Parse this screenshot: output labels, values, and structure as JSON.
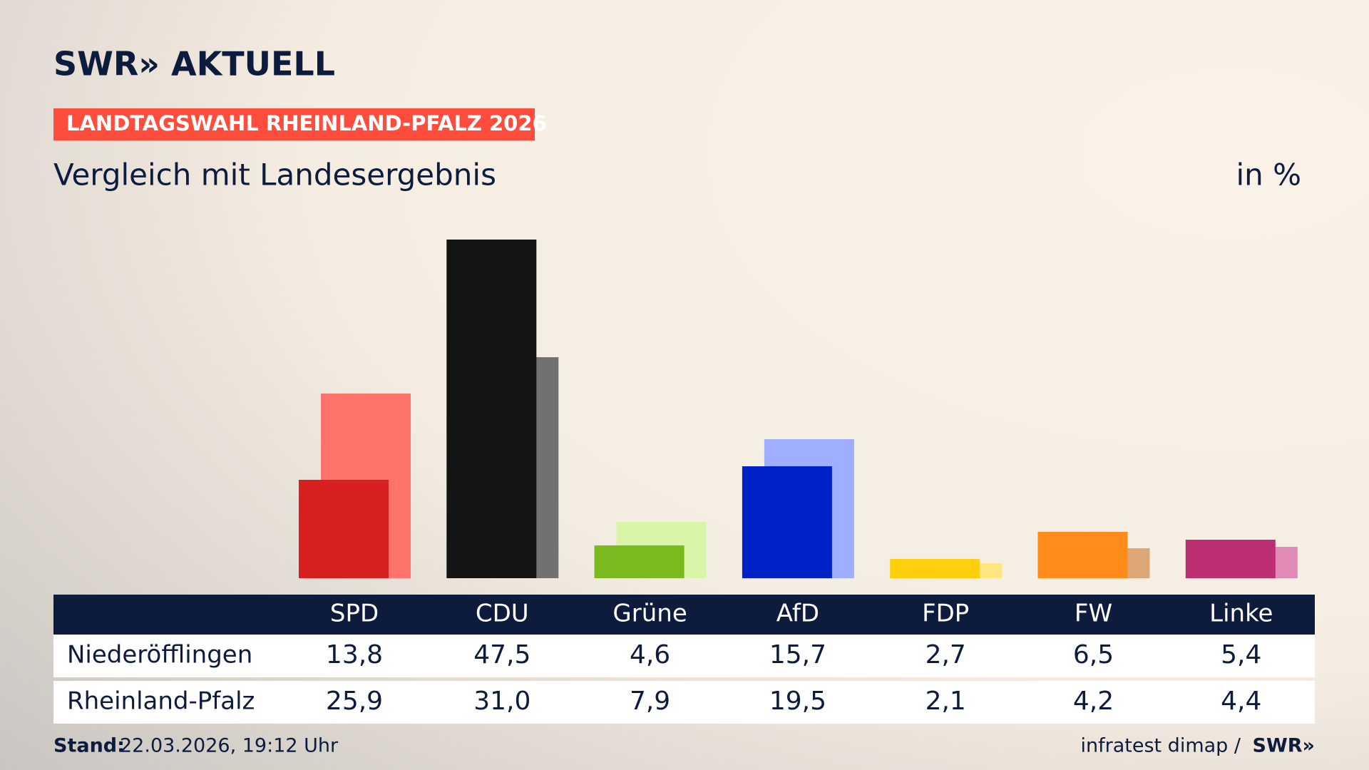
{
  "chart_data": {
    "type": "bar",
    "brand": "SWR» AKTUELL",
    "tag": "LANDTAGSWAHL RHEINLAND-PFALZ 2026",
    "title": "Vergleich mit Landesergebnis",
    "unit": "in %",
    "categories": [
      "SPD",
      "CDU",
      "Grüne",
      "AfD",
      "FDP",
      "FW",
      "Linke"
    ],
    "series": [
      {
        "name": "Niederöfflingen",
        "colors": [
          "#d71f1f",
          "#141414",
          "#7aba1e",
          "#0020c8",
          "#ffcf0e",
          "#ff8c1a",
          "#bb2f72"
        ],
        "values": [
          13.8,
          47.5,
          4.6,
          15.7,
          2.7,
          6.5,
          5.4
        ],
        "value_labels": [
          "13,8",
          "47,5",
          "4,6",
          "15,7",
          "2,7",
          "6,5",
          "5,4"
        ]
      },
      {
        "name": "Rheinland-Pfalz",
        "colors": [
          "#ff736c",
          "#737170",
          "#d8f5a8",
          "#a0aeff",
          "#ffe680",
          "#dca676",
          "#e08ab4"
        ],
        "values": [
          25.9,
          31.0,
          7.9,
          19.5,
          2.1,
          4.2,
          4.4
        ],
        "value_labels": [
          "25,9",
          "31,0",
          "7,9",
          "19,5",
          "2,1",
          "4,2",
          "4,4"
        ]
      }
    ],
    "footer_label": "Stand:",
    "footer_date": "22.03.2026, 19:12 Uhr",
    "source": "infratest dimap /",
    "source_brand": "SWR»"
  }
}
